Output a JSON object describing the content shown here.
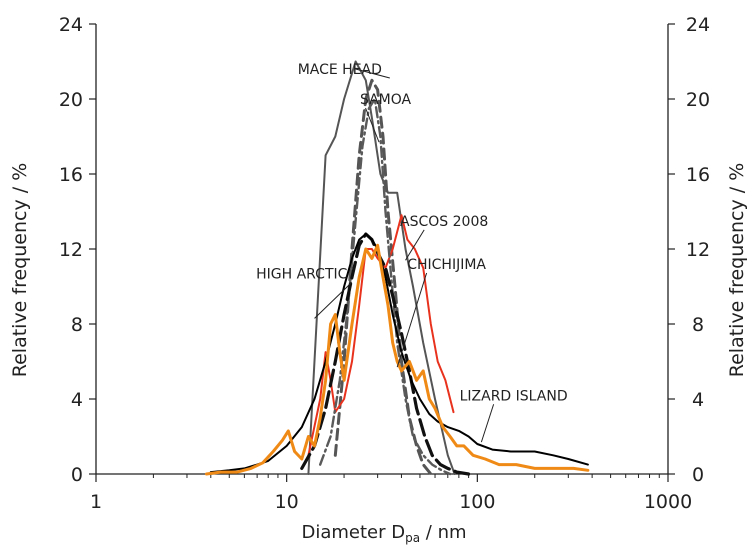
{
  "chart_data": {
    "type": "line",
    "title": "",
    "xlabel": "Diameter D",
    "xlabel_sub": "pa",
    "xlabel_unit": " / nm",
    "ylabel": "Relative frequency / %",
    "y2label": "Relative frequency / %",
    "xscale": "log",
    "xlim": [
      1,
      1000
    ],
    "ylim": [
      0,
      24
    ],
    "xticks": [
      1,
      10,
      100,
      1000
    ],
    "xtick_labels": [
      "1",
      "10",
      "100",
      "1000"
    ],
    "yticks": [
      0,
      4,
      8,
      12,
      16,
      20,
      24
    ],
    "ytick_labels": [
      "0",
      "4",
      "8",
      "12",
      "16",
      "20",
      "24"
    ],
    "grid": false,
    "series": [
      {
        "name": "MACE HEAD",
        "color": "#555555",
        "style": "solid",
        "x": [
          13,
          16,
          18,
          20,
          23,
          26,
          28,
          31,
          34,
          38,
          42,
          46,
          52,
          60,
          70,
          76
        ],
        "y": [
          0,
          17,
          18,
          20,
          22,
          21,
          19,
          16,
          15,
          15,
          12,
          10,
          7,
          4,
          1,
          0
        ]
      },
      {
        "name": "SAMOA",
        "color": "#555555",
        "style": "dash",
        "x": [
          18,
          20,
          22,
          24,
          26,
          28,
          30,
          32,
          34,
          37,
          40,
          44,
          48,
          52,
          57
        ],
        "y": [
          1,
          6,
          12,
          17,
          20,
          21,
          20.5,
          18,
          14,
          10,
          6,
          3,
          1.5,
          0.5,
          0
        ]
      },
      {
        "name": "ASCOS 2008",
        "color": "#e8321e",
        "style": "solid",
        "x": [
          13,
          15,
          16,
          17,
          18,
          20,
          22,
          24,
          26,
          28,
          30,
          33,
          36,
          40,
          43,
          47,
          52,
          57,
          62,
          68,
          75
        ],
        "y": [
          1,
          4,
          6.5,
          5,
          3.3,
          4,
          6,
          9,
          12,
          12,
          11.5,
          11,
          12,
          13.8,
          12.5,
          12,
          11,
          8,
          6,
          5,
          3.3
        ]
      },
      {
        "name": "CHICHIJIMA",
        "color": "#5a5a5a",
        "style": "dashdot",
        "x": [
          15,
          17,
          19,
          21,
          23,
          25,
          27,
          29,
          31,
          33,
          35,
          38,
          42,
          46,
          52,
          58,
          65,
          72
        ],
        "y": [
          0.5,
          2,
          5,
          9,
          13.5,
          17.5,
          19.5,
          20,
          18,
          14,
          11,
          7,
          4,
          2,
          1,
          0.5,
          0.2,
          0
        ]
      },
      {
        "name": "HIGH ARCTIC",
        "color": "#111111",
        "style": "longdash",
        "x": [
          12,
          14,
          16,
          18,
          20,
          22,
          24,
          26,
          28,
          30,
          33,
          36,
          40,
          44,
          48,
          53,
          58,
          64,
          70,
          78,
          90
        ],
        "y": [
          0.3,
          1.5,
          3.5,
          6,
          8.5,
          10.5,
          12.2,
          12.8,
          12.5,
          11.8,
          11,
          9.5,
          7.5,
          5.5,
          3.5,
          2,
          1,
          0.5,
          0.3,
          0.1,
          0
        ]
      },
      {
        "name": "LIZARD ISLAND",
        "color": "#000000",
        "style": "solid",
        "x": [
          4,
          5,
          6,
          7,
          8,
          10,
          12,
          14,
          16,
          18,
          20,
          22,
          24,
          26,
          28,
          30,
          33,
          36,
          40,
          45,
          50,
          56,
          62,
          70,
          80,
          90,
          100,
          120,
          150,
          200,
          250,
          300,
          380
        ],
        "y": [
          0.1,
          0.2,
          0.3,
          0.5,
          0.7,
          1.5,
          2.5,
          4,
          6,
          8,
          10,
          11.5,
          12.5,
          12.8,
          12.5,
          12,
          10.5,
          8.5,
          6.5,
          5,
          4,
          3.2,
          2.8,
          2.5,
          2.3,
          2,
          1.6,
          1.3,
          1.2,
          1.2,
          1,
          0.8,
          0.5
        ]
      },
      {
        "name": "HIGH ARCTIC (orange)",
        "color": "#f08a16",
        "style": "solid",
        "x": [
          3.8,
          4.5,
          5.5,
          6.5,
          7.5,
          8.5,
          9.5,
          10.2,
          11,
          12,
          13,
          14,
          15,
          16,
          17,
          18,
          19,
          20,
          22,
          24,
          26,
          28,
          30,
          32,
          34,
          36,
          38,
          40,
          44,
          48,
          52,
          56,
          60,
          66,
          72,
          78,
          85,
          95,
          110,
          130,
          160,
          200,
          260,
          320,
          380
        ],
        "y": [
          0,
          0.1,
          0.1,
          0.3,
          0.6,
          1.2,
          1.8,
          2.3,
          1.2,
          0.8,
          2,
          1.5,
          3,
          5,
          8,
          8.5,
          6.5,
          5,
          8,
          10.5,
          12,
          11.5,
          12.2,
          10.5,
          9,
          7,
          6,
          5.5,
          6,
          5,
          5.5,
          4,
          3.5,
          2.5,
          2,
          1.5,
          1.5,
          1,
          0.8,
          0.5,
          0.5,
          0.3,
          0.3,
          0.3,
          0.2
        ]
      }
    ],
    "annotations": [
      {
        "label": "MACE HEAD",
        "x": 19,
        "y": 21.6,
        "tx": 23,
        "ty": 21.6
      },
      {
        "label": "SAMOA",
        "x": 33,
        "y": 20,
        "tx": 30.5,
        "ty": 17.7
      },
      {
        "label": "ASCOS 2008",
        "x": 67,
        "y": 13.5,
        "tx": 42,
        "ty": 11.4
      },
      {
        "label": "CHICHIJIMA",
        "x": 69,
        "y": 11.2,
        "tx": 38,
        "ty": 5.7
      },
      {
        "label": "HIGH ARCTIC",
        "x": 12,
        "y": 10.7,
        "tx": 14,
        "ty": 8.3
      },
      {
        "label": "LIZARD ISLAND",
        "x": 155,
        "y": 4.2,
        "tx": 105,
        "ty": 1.7
      }
    ]
  }
}
